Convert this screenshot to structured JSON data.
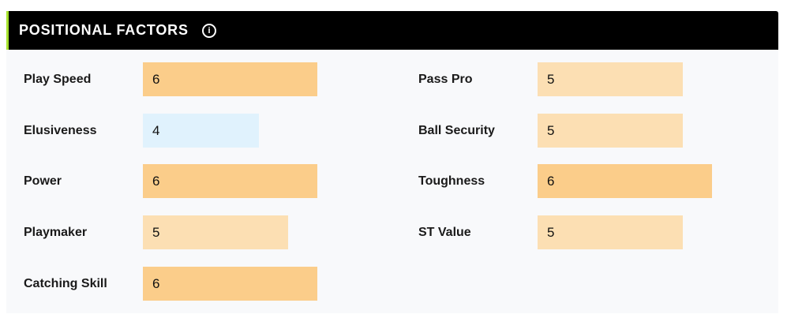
{
  "header": {
    "title": "POSITIONAL FACTORS",
    "info_icon": "info-icon"
  },
  "scale_max": 10,
  "colors": {
    "high": "#fbcd8a",
    "mid": "#fcdfb3",
    "low": "#e0f2fd",
    "accent": "#a6e22e"
  },
  "left_factors": [
    {
      "label": "Play Speed",
      "value": "6",
      "level": "high"
    },
    {
      "label": "Elusiveness",
      "value": "4",
      "level": "low"
    },
    {
      "label": "Power",
      "value": "6",
      "level": "high"
    },
    {
      "label": "Playmaker",
      "value": "5",
      "level": "mid"
    },
    {
      "label": "Catching Skill",
      "value": "6",
      "level": "high"
    }
  ],
  "right_factors": [
    {
      "label": "Pass Pro",
      "value": "5",
      "level": "mid"
    },
    {
      "label": "Ball Security",
      "value": "5",
      "level": "mid"
    },
    {
      "label": "Toughness",
      "value": "6",
      "level": "high"
    },
    {
      "label": "ST Value",
      "value": "5",
      "level": "mid"
    }
  ]
}
